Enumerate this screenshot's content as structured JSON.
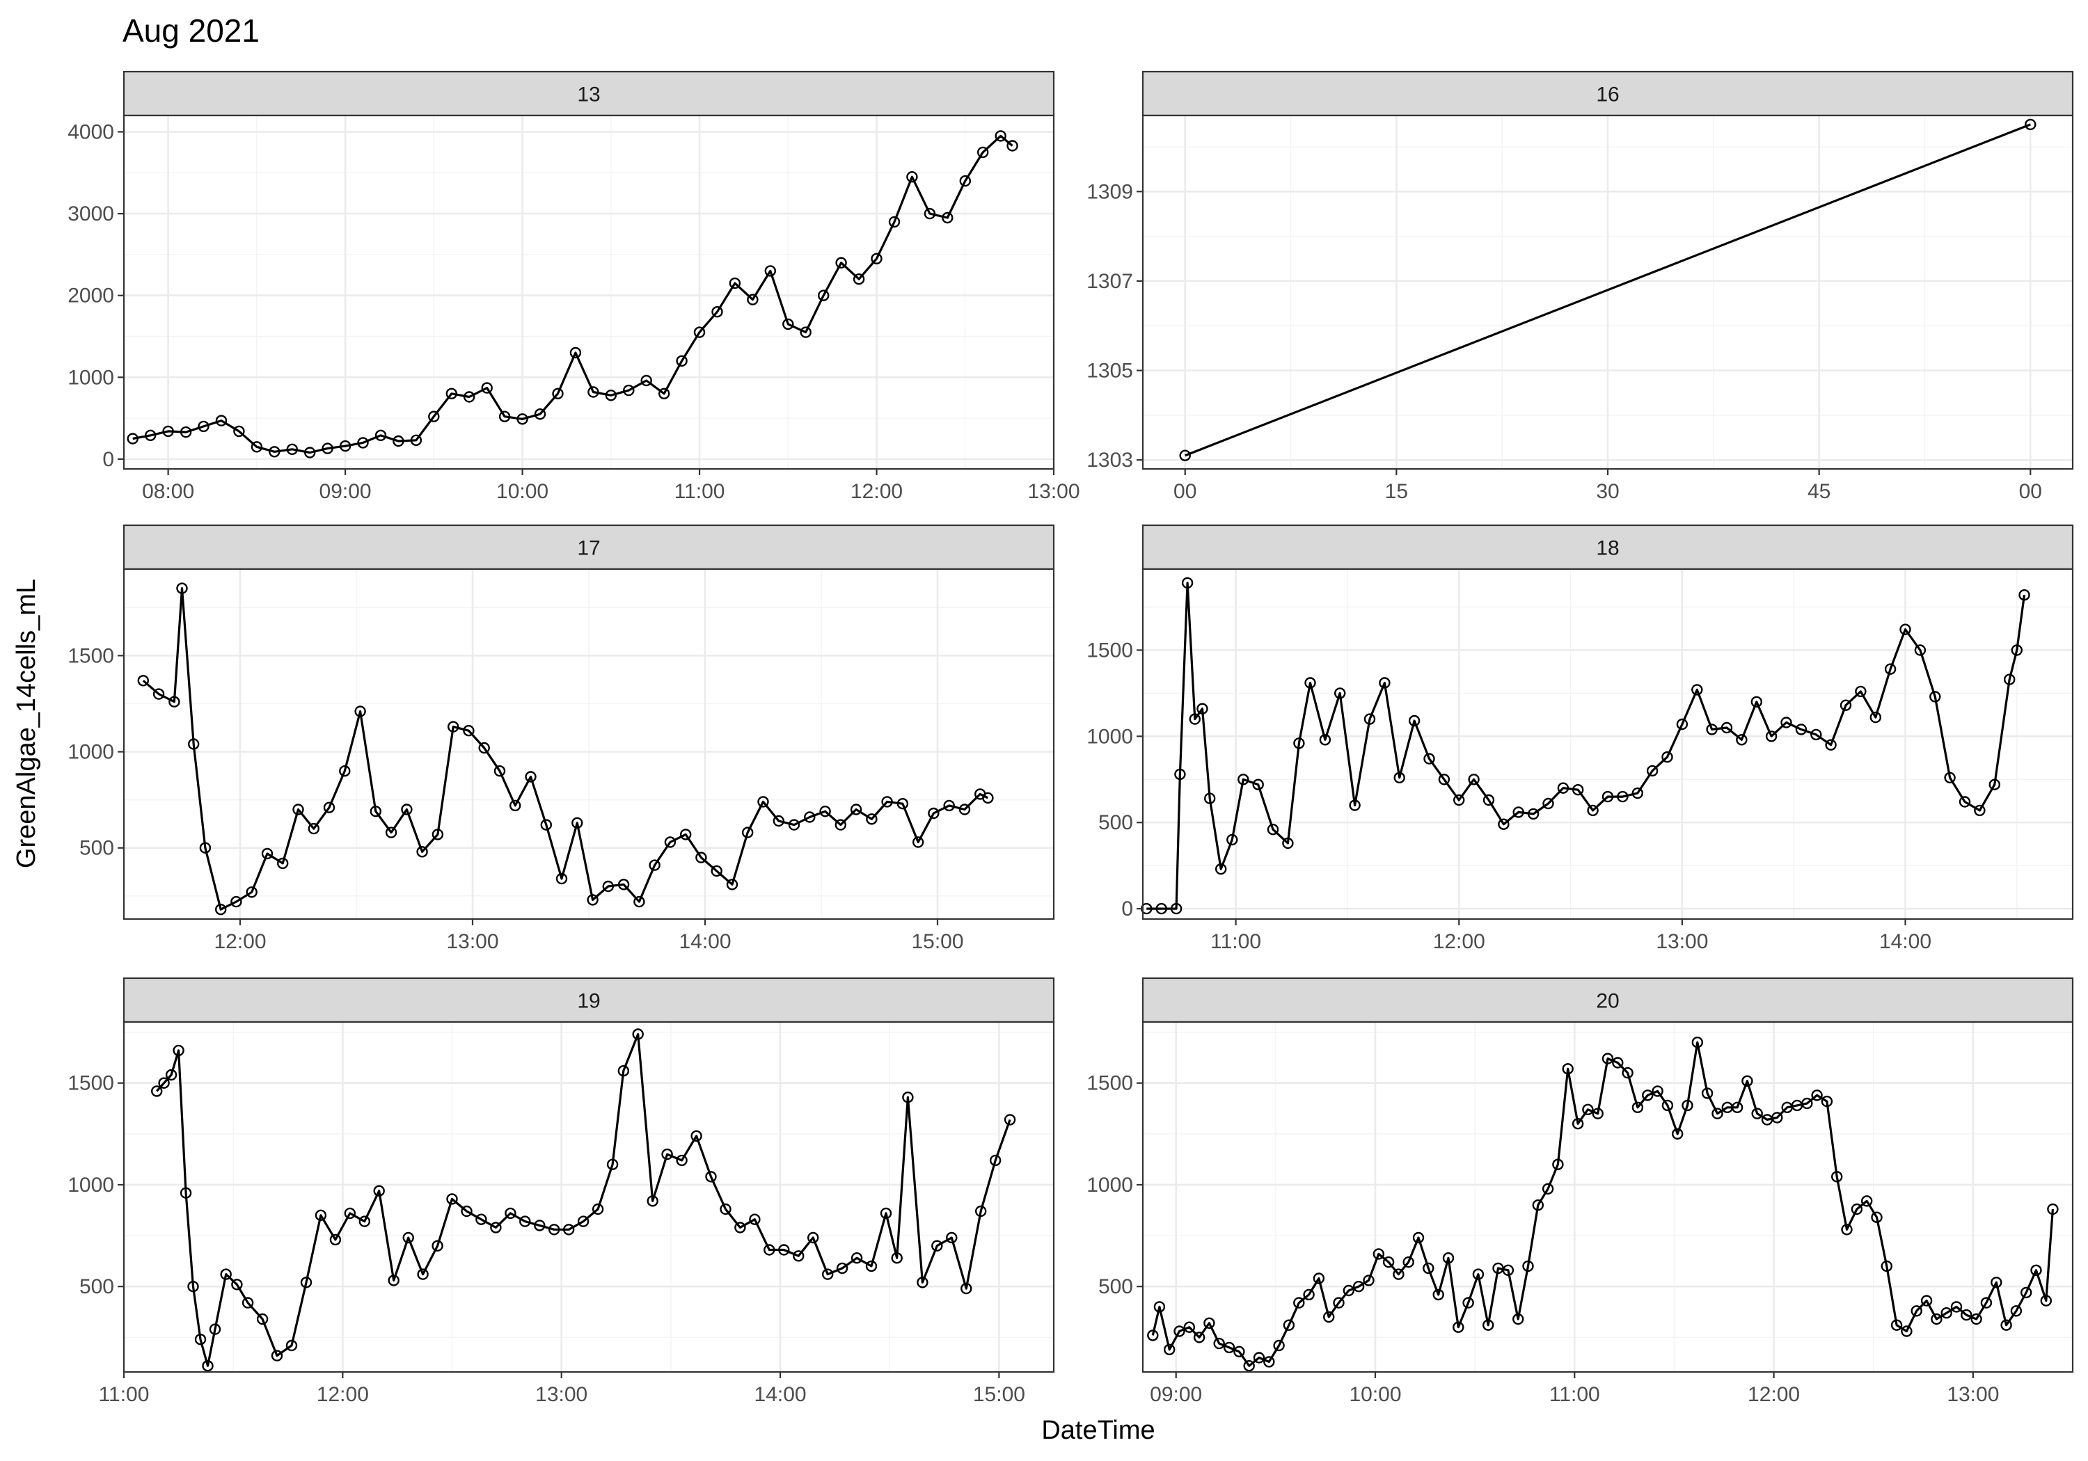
{
  "chart_data": {
    "type": "line",
    "title": "Aug 2021",
    "xlabel": "DateTime",
    "ylabel": "GreenAlgae_14cells_mL",
    "grid": true,
    "markers": "open-circle",
    "line_color": "#000000",
    "strip_fill": "#d9d9d9",
    "panels": [
      {
        "strip": "13",
        "xlim": [
          "07:45",
          "13:00"
        ],
        "ylim": [
          -120,
          4200
        ],
        "x_ticks": [
          "08:00",
          "09:00",
          "10:00",
          "11:00",
          "12:00",
          "13:00"
        ],
        "y_ticks": [
          0,
          1000,
          2000,
          3000,
          4000
        ],
        "series": [
          {
            "x": [
              "07:48",
              "07:54",
              "08:00",
              "08:06",
              "08:12",
              "08:18",
              "08:24",
              "08:30",
              "08:36",
              "08:42",
              "08:48",
              "08:54",
              "09:00",
              "09:06",
              "09:12",
              "09:18",
              "09:24",
              "09:30",
              "09:36",
              "09:42",
              "09:48",
              "09:54",
              "10:00",
              "10:06",
              "10:12",
              "10:18",
              "10:24",
              "10:30",
              "10:36",
              "10:42",
              "10:48",
              "10:54",
              "11:00",
              "11:06",
              "11:12",
              "11:18",
              "11:24",
              "11:30",
              "11:36",
              "11:42",
              "11:48",
              "11:54",
              "12:00",
              "12:06",
              "12:12",
              "12:18",
              "12:24",
              "12:30",
              "12:36",
              "12:42",
              "12:46"
            ],
            "values": [
              250,
              290,
              340,
              330,
              400,
              470,
              340,
              150,
              90,
              120,
              80,
              130,
              160,
              200,
              290,
              220,
              230,
              520,
              800,
              760,
              870,
              520,
              490,
              550,
              800,
              1300,
              820,
              780,
              840,
              960,
              800,
              1200,
              1550,
              1800,
              2150,
              1950,
              2300,
              1650,
              1550,
              2000,
              2400,
              2200,
              2450,
              2900,
              3450,
              3000,
              2950,
              3400,
              3750,
              3950,
              3830
            ]
          }
        ]
      },
      {
        "strip": "16",
        "xlim": [
          "00",
          "00"
        ],
        "ylim": [
          1302.8,
          1310.7
        ],
        "x_ticks": [
          "00",
          "15",
          "30",
          "45",
          "00"
        ],
        "y_ticks": [
          1303,
          1305,
          1307,
          1309
        ],
        "series": [
          {
            "x": [
              0,
              60
            ],
            "values": [
              1303.1,
              1310.5
            ]
          }
        ]
      },
      {
        "strip": "17",
        "xlim": [
          "11:30",
          "15:30"
        ],
        "ylim": [
          130,
          1950
        ],
        "x_ticks": [
          "12:00",
          "13:00",
          "14:00",
          "15:00"
        ],
        "y_ticks": [
          500,
          1000,
          1500
        ],
        "series": [
          {
            "x": [
              "11:35",
              "11:39",
              "11:43",
              "11:45",
              "11:48",
              "11:51",
              "11:55",
              "11:59",
              "12:03",
              "12:07",
              "12:11",
              "12:15",
              "12:19",
              "12:23",
              "12:27",
              "12:31",
              "12:35",
              "12:39",
              "12:43",
              "12:47",
              "12:51",
              "12:55",
              "12:59",
              "13:03",
              "13:07",
              "13:11",
              "13:15",
              "13:19",
              "13:23",
              "13:27",
              "13:31",
              "13:35",
              "13:39",
              "13:43",
              "13:47",
              "13:51",
              "13:55",
              "13:59",
              "14:03",
              "14:07",
              "14:11",
              "14:15",
              "14:19",
              "14:23",
              "14:27",
              "14:31",
              "14:35",
              "14:39",
              "14:43",
              "14:47",
              "14:51",
              "14:55",
              "14:59",
              "15:03",
              "15:07",
              "15:11",
              "15:13"
            ],
            "values": [
              1370,
              1300,
              1260,
              1850,
              1040,
              500,
              180,
              220,
              270,
              470,
              420,
              700,
              600,
              710,
              900,
              1210,
              690,
              580,
              700,
              480,
              570,
              1130,
              1110,
              1020,
              900,
              720,
              870,
              620,
              340,
              630,
              230,
              300,
              310,
              220,
              410,
              530,
              570,
              450,
              380,
              310,
              580,
              740,
              640,
              620,
              660,
              690,
              620,
              700,
              650,
              740,
              730,
              530,
              680,
              720,
              700,
              780,
              760
            ]
          }
        ]
      },
      {
        "strip": "18",
        "xlim": [
          "10:35",
          "14:45"
        ],
        "ylim": [
          -60,
          1970
        ],
        "x_ticks": [
          "11:00",
          "12:00",
          "13:00",
          "14:00"
        ],
        "y_ticks": [
          0,
          500,
          1000,
          1500
        ],
        "series": [
          {
            "x": [
              "10:36",
              "10:40",
              "10:44",
              "10:45",
              "10:47",
              "10:49",
              "10:51",
              "10:53",
              "10:56",
              "10:59",
              "11:02",
              "11:06",
              "11:10",
              "11:14",
              "11:17",
              "11:20",
              "11:24",
              "11:28",
              "11:32",
              "11:36",
              "11:40",
              "11:44",
              "11:48",
              "11:52",
              "11:56",
              "12:00",
              "12:04",
              "12:08",
              "12:12",
              "12:16",
              "12:20",
              "12:24",
              "12:28",
              "12:32",
              "12:36",
              "12:40",
              "12:44",
              "12:48",
              "12:52",
              "12:56",
              "13:00",
              "13:04",
              "13:08",
              "13:12",
              "13:16",
              "13:20",
              "13:24",
              "13:28",
              "13:32",
              "13:36",
              "13:40",
              "13:44",
              "13:48",
              "13:52",
              "13:56",
              "14:00",
              "14:04",
              "14:08",
              "14:12",
              "14:16",
              "14:20",
              "14:24",
              "14:28",
              "14:30",
              "14:32"
            ],
            "values": [
              0,
              0,
              0,
              780,
              1890,
              1100,
              1160,
              640,
              230,
              400,
              750,
              720,
              460,
              380,
              960,
              1310,
              980,
              1250,
              600,
              1100,
              1310,
              760,
              1090,
              870,
              750,
              630,
              750,
              630,
              490,
              560,
              550,
              610,
              700,
              690,
              570,
              650,
              650,
              670,
              800,
              880,
              1070,
              1270,
              1040,
              1050,
              980,
              1200,
              1000,
              1080,
              1040,
              1010,
              950,
              1180,
              1260,
              1110,
              1390,
              1620,
              1500,
              1230,
              760,
              620,
              570,
              720,
              1330,
              1500,
              1820
            ]
          }
        ]
      },
      {
        "strip": "19",
        "xlim": [
          "11:00",
          "15:15"
        ],
        "ylim": [
          80,
          1800
        ],
        "x_ticks": [
          "11:00",
          "12:00",
          "13:00",
          "14:00",
          "15:00"
        ],
        "y_ticks": [
          500,
          1000,
          1500
        ],
        "series": [
          {
            "x": [
              "11:09",
              "11:11",
              "11:13",
              "11:15",
              "11:17",
              "11:19",
              "11:21",
              "11:23",
              "11:25",
              "11:28",
              "11:31",
              "11:34",
              "11:38",
              "11:42",
              "11:46",
              "11:50",
              "11:54",
              "11:58",
              "12:02",
              "12:06",
              "12:10",
              "12:14",
              "12:18",
              "12:22",
              "12:26",
              "12:30",
              "12:34",
              "12:38",
              "12:42",
              "12:46",
              "12:50",
              "12:54",
              "12:58",
              "13:02",
              "13:06",
              "13:10",
              "13:14",
              "13:17",
              "13:21",
              "13:25",
              "13:29",
              "13:33",
              "13:37",
              "13:41",
              "13:45",
              "13:49",
              "13:53",
              "13:57",
              "14:01",
              "14:05",
              "14:09",
              "14:13",
              "14:17",
              "14:21",
              "14:25",
              "14:29",
              "14:32",
              "14:35",
              "14:39",
              "14:43",
              "14:47",
              "14:51",
              "14:55",
              "14:59",
              "15:03"
            ],
            "values": [
              1460,
              1500,
              1540,
              1660,
              960,
              500,
              240,
              110,
              290,
              560,
              510,
              420,
              340,
              160,
              210,
              520,
              850,
              730,
              860,
              820,
              970,
              530,
              740,
              560,
              700,
              930,
              870,
              830,
              790,
              860,
              820,
              800,
              780,
              780,
              820,
              880,
              1100,
              1560,
              1740,
              920,
              1150,
              1120,
              1240,
              1040,
              880,
              790,
              830,
              680,
              680,
              650,
              740,
              560,
              590,
              640,
              600,
              860,
              640,
              1430,
              520,
              700,
              740,
              490,
              870,
              1120,
              1320
            ]
          }
        ]
      },
      {
        "strip": "20",
        "xlim": [
          "08:50",
          "13:30"
        ],
        "ylim": [
          80,
          1800
        ],
        "x_ticks": [
          "09:00",
          "10:00",
          "11:00",
          "12:00",
          "13:00"
        ],
        "y_ticks": [
          500,
          1000,
          1500
        ],
        "series": [
          {
            "x": [
              "08:53",
              "08:55",
              "08:58",
              "09:01",
              "09:04",
              "09:07",
              "09:10",
              "09:13",
              "09:16",
              "09:19",
              "09:22",
              "09:25",
              "09:28",
              "09:31",
              "09:34",
              "09:37",
              "09:40",
              "09:43",
              "09:46",
              "09:49",
              "09:52",
              "09:55",
              "09:58",
              "10:01",
              "10:04",
              "10:07",
              "10:10",
              "10:13",
              "10:16",
              "10:19",
              "10:22",
              "10:25",
              "10:28",
              "10:31",
              "10:34",
              "10:37",
              "10:40",
              "10:43",
              "10:46",
              "10:49",
              "10:52",
              "10:55",
              "10:58",
              "11:01",
              "11:04",
              "11:07",
              "11:10",
              "11:13",
              "11:16",
              "11:19",
              "11:22",
              "11:25",
              "11:28",
              "11:31",
              "11:34",
              "11:37",
              "11:40",
              "11:43",
              "11:46",
              "11:49",
              "11:52",
              "11:55",
              "11:58",
              "12:01",
              "12:04",
              "12:07",
              "12:10",
              "12:13",
              "12:16",
              "12:19",
              "12:22",
              "12:25",
              "12:28",
              "12:31",
              "12:34",
              "12:37",
              "12:40",
              "12:43",
              "12:46",
              "12:49",
              "12:52",
              "12:55",
              "12:58",
              "13:01",
              "13:04",
              "13:07",
              "13:10",
              "13:13",
              "13:16",
              "13:19",
              "13:22",
              "13:24"
            ],
            "values": [
              260,
              400,
              190,
              280,
              300,
              250,
              320,
              220,
              200,
              180,
              110,
              150,
              130,
              210,
              310,
              420,
              460,
              540,
              350,
              420,
              480,
              500,
              530,
              660,
              620,
              560,
              620,
              740,
              590,
              460,
              640,
              300,
              420,
              560,
              310,
              590,
              580,
              340,
              600,
              900,
              980,
              1100,
              1570,
              1300,
              1370,
              1350,
              1620,
              1600,
              1550,
              1380,
              1440,
              1460,
              1390,
              1250,
              1390,
              1700,
              1450,
              1350,
              1380,
              1380,
              1510,
              1350,
              1320,
              1330,
              1380,
              1390,
              1400,
              1440,
              1410,
              1040,
              780,
              880,
              920,
              840,
              600,
              310,
              280,
              380,
              430,
              340,
              370,
              400,
              360,
              340,
              420,
              520,
              310,
              380,
              470,
              580,
              430,
              880
            ]
          }
        ]
      }
    ]
  }
}
